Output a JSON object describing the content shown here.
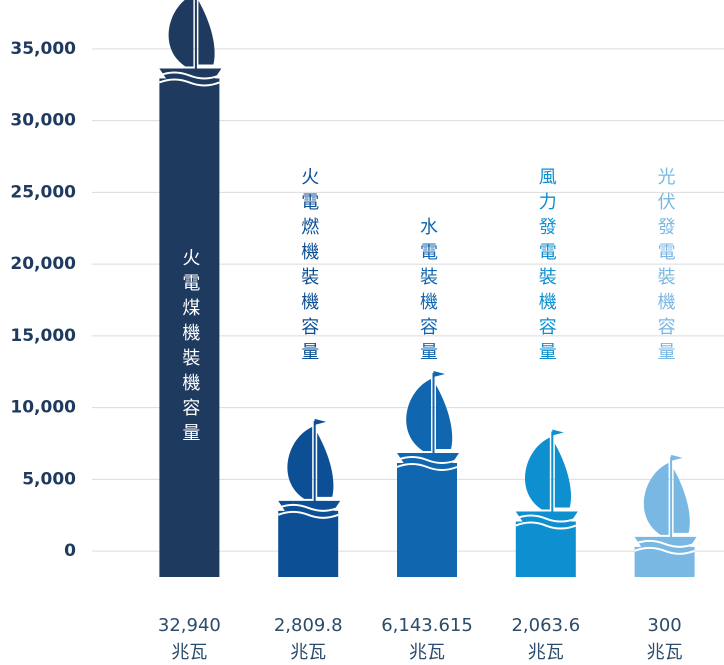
{
  "chart_data": {
    "type": "bar",
    "categories": [
      "火電煤機裝機容量",
      "火電燃機裝機容量",
      "水電裝機容量",
      "風力發電裝機容量",
      "光伏發電裝機容量"
    ],
    "values": [
      32940,
      2809.8,
      6143.615,
      2063.6,
      300
    ],
    "value_labels": [
      "32,940",
      "2,809.8",
      "6,143.615",
      "2,063.6",
      "300"
    ],
    "unit": "兆瓦",
    "colors": [
      "#1f3a5f",
      "#0d4f94",
      "#1166b0",
      "#0e8fd0",
      "#7ab8e4"
    ],
    "ylim": [
      -1800,
      37500
    ],
    "yticks": [
      0,
      {
        "value": 5000,
        "label": "5,000"
      },
      {
        "value": 10000,
        "label": "10,000"
      },
      {
        "value": 15000,
        "label": "15,000"
      },
      {
        "value": 20000,
        "label": "20,000"
      },
      {
        "value": 25000,
        "label": "25,000"
      },
      {
        "value": 30000,
        "label": "30,000"
      },
      {
        "value": 35000,
        "label": "35,000"
      }
    ],
    "grid": true
  }
}
